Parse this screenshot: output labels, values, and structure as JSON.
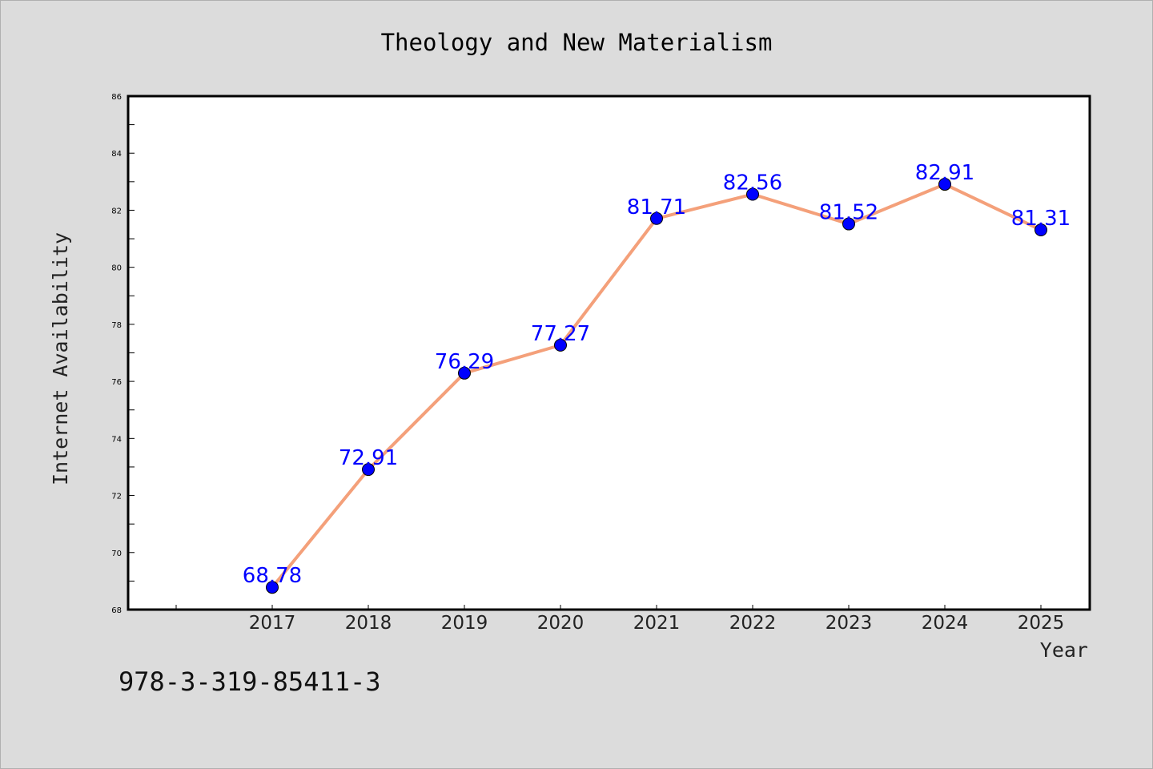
{
  "chart_data": {
    "type": "line",
    "title": "Theology and New Materialism",
    "xlabel": "Year",
    "ylabel": "Internet Availability",
    "categories": [
      "2017",
      "2018",
      "2019",
      "2020",
      "2021",
      "2022",
      "2023",
      "2024",
      "2025"
    ],
    "series": [
      {
        "values": [
          68.78,
          72.91,
          76.29,
          77.27,
          81.71,
          82.56,
          81.52,
          82.91,
          81.31
        ],
        "labels": [
          "68.78",
          "72.91",
          "76.29",
          "77.27",
          "81.71",
          "82.56",
          "81.52",
          "82.91",
          "81.31"
        ],
        "line_color": "#f4a07a",
        "marker_color": "#0000ff"
      }
    ],
    "ylim": [
      68,
      86
    ],
    "yticks": [
      68,
      70,
      72,
      74,
      76,
      78,
      80,
      82,
      84,
      86
    ],
    "ytick_labels": [
      "68",
      "70",
      "72",
      "74",
      "76",
      "78",
      "80",
      "82",
      "84",
      "86"
    ],
    "grid": false,
    "legend": "none"
  },
  "footer": {
    "isbn": "978-3-319-85411-3"
  },
  "colors": {
    "background": "#dcdcdc",
    "plot_background": "#ffffff"
  }
}
